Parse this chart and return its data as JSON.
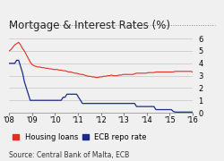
{
  "title": "Mortgage & Interest Rates (%)",
  "source": "Source: Central Bank of Malta, ECB",
  "ylim": [
    0,
    6
  ],
  "yticks": [
    0,
    1,
    2,
    3,
    4,
    5,
    6
  ],
  "xlabel_ticks": [
    "'08",
    "'09",
    "'10",
    "'11",
    "'12",
    "'13",
    "'14",
    "'15",
    "'16"
  ],
  "housing_loans": [
    5.0,
    5.1,
    5.3,
    5.5,
    5.6,
    5.7,
    5.5,
    5.2,
    5.0,
    4.7,
    4.4,
    4.1,
    3.9,
    3.8,
    3.75,
    3.7,
    3.7,
    3.65,
    3.65,
    3.6,
    3.6,
    3.55,
    3.55,
    3.5,
    3.5,
    3.5,
    3.45,
    3.45,
    3.4,
    3.4,
    3.35,
    3.3,
    3.3,
    3.25,
    3.2,
    3.2,
    3.15,
    3.1,
    3.1,
    3.05,
    3.0,
    2.95,
    2.95,
    2.9,
    2.9,
    2.85,
    2.85,
    2.9,
    2.9,
    2.95,
    2.95,
    3.0,
    3.0,
    3.05,
    3.0,
    3.0,
    3.0,
    3.05,
    3.05,
    3.1,
    3.1,
    3.1,
    3.1,
    3.1,
    3.1,
    3.15,
    3.2,
    3.2,
    3.2,
    3.2,
    3.2,
    3.2,
    3.25,
    3.25,
    3.25,
    3.25,
    3.3,
    3.3,
    3.3,
    3.3,
    3.3,
    3.3,
    3.3,
    3.3,
    3.3,
    3.3,
    3.35,
    3.35,
    3.35,
    3.35,
    3.35,
    3.35,
    3.35,
    3.35,
    3.35,
    3.3
  ],
  "ecb_repo": [
    4.0,
    4.0,
    4.0,
    4.0,
    4.25,
    4.25,
    3.75,
    3.25,
    2.5,
    2.0,
    1.5,
    1.0,
    1.0,
    1.0,
    1.0,
    1.0,
    1.0,
    1.0,
    1.0,
    1.0,
    1.0,
    1.0,
    1.0,
    1.0,
    1.0,
    1.0,
    1.0,
    1.0,
    1.25,
    1.25,
    1.5,
    1.5,
    1.5,
    1.5,
    1.5,
    1.5,
    1.25,
    1.0,
    0.75,
    0.75,
    0.75,
    0.75,
    0.75,
    0.75,
    0.75,
    0.75,
    0.75,
    0.75,
    0.75,
    0.75,
    0.75,
    0.75,
    0.75,
    0.75,
    0.75,
    0.75,
    0.75,
    0.75,
    0.75,
    0.75,
    0.75,
    0.75,
    0.75,
    0.75,
    0.75,
    0.75,
    0.5,
    0.5,
    0.5,
    0.5,
    0.5,
    0.5,
    0.5,
    0.5,
    0.5,
    0.5,
    0.25,
    0.25,
    0.25,
    0.25,
    0.25,
    0.25,
    0.25,
    0.25,
    0.25,
    0.1,
    0.05,
    0.05,
    0.05,
    0.05,
    0.05,
    0.05,
    0.05,
    0.05,
    0.05,
    0.05
  ],
  "n_points": 96,
  "housing_color": "#e03020",
  "ecb_color": "#1a2a8a",
  "background_color": "#f0f0f0",
  "title_fontsize": 8.5,
  "axis_fontsize": 6,
  "legend_fontsize": 6,
  "source_fontsize": 5.5
}
